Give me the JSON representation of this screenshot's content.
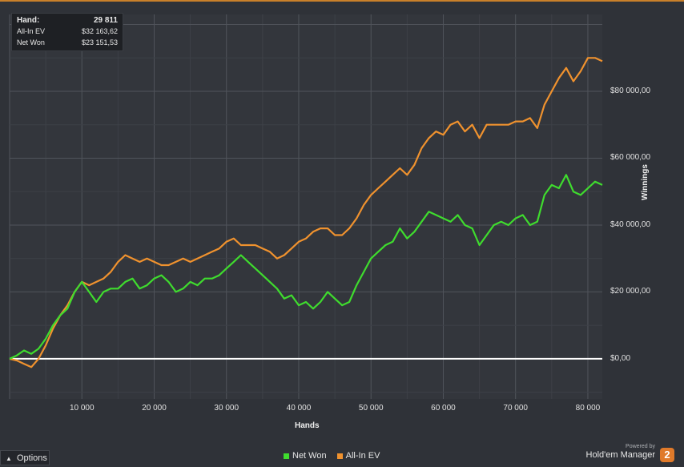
{
  "tooltip": {
    "hand_label": "Hand:",
    "hand_value": "29 811",
    "ev_label": "All-In EV",
    "ev_value": "$32 163,62",
    "net_label": "Net Won",
    "net_value": "$23 151,53"
  },
  "legend": {
    "net_won": "Net Won",
    "all_in_ev": "All-In EV"
  },
  "footer": {
    "options_label": "Options",
    "powered_by": "Powered by",
    "brand_name": "Hold'em Manager",
    "brand_number": "2"
  },
  "colors": {
    "net_won": "#3fdc2e",
    "all_in_ev": "#f0922e",
    "background": "#2f3238",
    "grid": "#474b52",
    "zero_line": "#ffffff",
    "accent": "#c9802a"
  },
  "chart_data": {
    "type": "line",
    "xlabel": "Hands",
    "ylabel": "Winnings",
    "xlim": [
      0,
      82000
    ],
    "ylim": [
      -12000,
      103000
    ],
    "x_ticks": [
      {
        "value": 10000,
        "label": "10 000"
      },
      {
        "value": 20000,
        "label": "20 000"
      },
      {
        "value": 30000,
        "label": "30 000"
      },
      {
        "value": 40000,
        "label": "40 000"
      },
      {
        "value": 50000,
        "label": "50 000"
      },
      {
        "value": 60000,
        "label": "60 000"
      },
      {
        "value": 70000,
        "label": "70 000"
      },
      {
        "value": 80000,
        "label": "80 000"
      }
    ],
    "y_ticks": [
      {
        "value": 0,
        "label": "$0,00"
      },
      {
        "value": 20000,
        "label": "$20 000,00"
      },
      {
        "value": 40000,
        "label": "$40 000,00"
      },
      {
        "value": 60000,
        "label": "$60 000,00"
      },
      {
        "value": 80000,
        "label": "$80 000,00"
      }
    ],
    "grid": true,
    "legend_position": "bottom-center",
    "series": [
      {
        "name": "Net Won",
        "x": [
          0,
          1000,
          2000,
          3000,
          4000,
          5000,
          6000,
          7000,
          8000,
          9000,
          10000,
          11000,
          12000,
          13000,
          14000,
          15000,
          16000,
          17000,
          18000,
          19000,
          20000,
          21000,
          22000,
          23000,
          24000,
          25000,
          26000,
          27000,
          28000,
          29000,
          30000,
          31000,
          32000,
          33000,
          34000,
          35000,
          36000,
          37000,
          38000,
          39000,
          40000,
          41000,
          42000,
          43000,
          44000,
          45000,
          46000,
          47000,
          48000,
          49000,
          50000,
          51000,
          52000,
          53000,
          54000,
          55000,
          56000,
          57000,
          58000,
          59000,
          60000,
          61000,
          62000,
          63000,
          64000,
          65000,
          66000,
          67000,
          68000,
          69000,
          70000,
          71000,
          72000,
          73000,
          74000,
          75000,
          76000,
          77000,
          78000,
          79000,
          80000,
          81000,
          82000
        ],
        "values": [
          0,
          1000,
          2500,
          1500,
          3000,
          6000,
          10000,
          13000,
          15000,
          20000,
          23000,
          20000,
          17000,
          20000,
          21000,
          21000,
          23000,
          24000,
          21000,
          22000,
          24000,
          25000,
          23000,
          20000,
          21000,
          23000,
          22000,
          24000,
          24000,
          25000,
          27000,
          29000,
          31000,
          29000,
          27000,
          25000,
          23000,
          21000,
          18000,
          19000,
          16000,
          17000,
          15000,
          17000,
          20000,
          18000,
          16000,
          17000,
          22000,
          26000,
          30000,
          32000,
          34000,
          35000,
          39000,
          36000,
          38000,
          41000,
          44000,
          43000,
          42000,
          41000,
          43000,
          40000,
          39000,
          34000,
          37000,
          40000,
          41000,
          40000,
          42000,
          43000,
          40000,
          41000,
          49000,
          52000,
          51000,
          55000,
          50000,
          49000,
          51000,
          53000,
          52000
        ]
      },
      {
        "name": "All-In EV",
        "x": [
          0,
          1000,
          2000,
          3000,
          4000,
          5000,
          6000,
          7000,
          8000,
          9000,
          10000,
          11000,
          12000,
          13000,
          14000,
          15000,
          16000,
          17000,
          18000,
          19000,
          20000,
          21000,
          22000,
          23000,
          24000,
          25000,
          26000,
          27000,
          28000,
          29000,
          30000,
          31000,
          32000,
          33000,
          34000,
          35000,
          36000,
          37000,
          38000,
          39000,
          40000,
          41000,
          42000,
          43000,
          44000,
          45000,
          46000,
          47000,
          48000,
          49000,
          50000,
          51000,
          52000,
          53000,
          54000,
          55000,
          56000,
          57000,
          58000,
          59000,
          60000,
          61000,
          62000,
          63000,
          64000,
          65000,
          66000,
          67000,
          68000,
          69000,
          70000,
          71000,
          72000,
          73000,
          74000,
          75000,
          76000,
          77000,
          78000,
          79000,
          80000,
          81000,
          82000
        ],
        "values": [
          0,
          -500,
          -1500,
          -2500,
          0,
          4000,
          9000,
          13000,
          16000,
          20000,
          23000,
          22000,
          23000,
          24000,
          26000,
          29000,
          31000,
          30000,
          29000,
          30000,
          29000,
          28000,
          28000,
          29000,
          30000,
          29000,
          30000,
          31000,
          32000,
          33000,
          35000,
          36000,
          34000,
          34000,
          34000,
          33000,
          32000,
          30000,
          31000,
          33000,
          35000,
          36000,
          38000,
          39000,
          39000,
          37000,
          37000,
          39000,
          42000,
          46000,
          49000,
          51000,
          53000,
          55000,
          57000,
          55000,
          58000,
          63000,
          66000,
          68000,
          67000,
          70000,
          71000,
          68000,
          70000,
          66000,
          70000,
          70000,
          70000,
          70000,
          71000,
          71000,
          72000,
          69000,
          76000,
          80000,
          84000,
          87000,
          83000,
          86000,
          90000,
          90000,
          89000
        ]
      }
    ]
  }
}
